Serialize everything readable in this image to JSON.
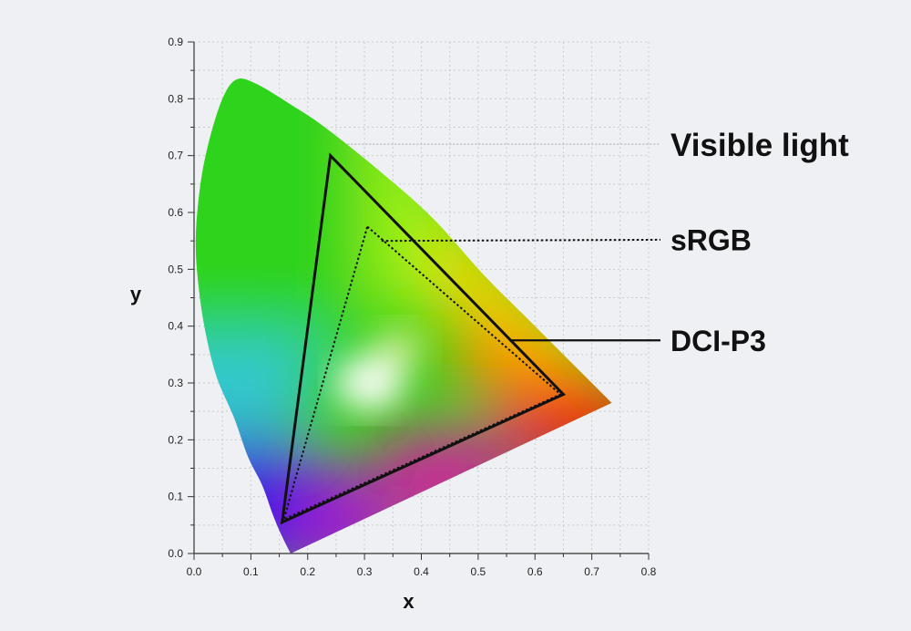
{
  "chart_data": {
    "type": "chromaticity-diagram",
    "title": "",
    "xlabel": "x",
    "ylabel": "y",
    "xlim": [
      0.0,
      0.8
    ],
    "ylim": [
      0.0,
      0.9
    ],
    "x_ticks": [
      "0.0",
      "0.1",
      "0.2",
      "0.3",
      "0.4",
      "0.5",
      "0.6",
      "0.7",
      "0.8"
    ],
    "y_ticks": [
      "0.0",
      "0.1",
      "0.2",
      "0.3",
      "0.4",
      "0.5",
      "0.6",
      "0.7",
      "0.8",
      "0.9"
    ],
    "grid": true,
    "spectral_locus": [
      [
        0.17,
        0.0
      ],
      [
        0.155,
        0.03
      ],
      [
        0.14,
        0.065
      ],
      [
        0.12,
        0.12
      ],
      [
        0.095,
        0.17
      ],
      [
        0.07,
        0.24
      ],
      [
        0.04,
        0.31
      ],
      [
        0.02,
        0.39
      ],
      [
        0.008,
        0.47
      ],
      [
        0.003,
        0.55
      ],
      [
        0.01,
        0.64
      ],
      [
        0.025,
        0.72
      ],
      [
        0.05,
        0.8
      ],
      [
        0.075,
        0.834
      ],
      [
        0.11,
        0.826
      ],
      [
        0.17,
        0.79
      ],
      [
        0.23,
        0.75
      ],
      [
        0.33,
        0.67
      ],
      [
        0.42,
        0.59
      ],
      [
        0.51,
        0.49
      ],
      [
        0.58,
        0.42
      ],
      [
        0.64,
        0.36
      ],
      [
        0.7,
        0.3
      ],
      [
        0.735,
        0.265
      ]
    ],
    "series": [
      {
        "name": "Visible light",
        "style": "filled-gamut"
      },
      {
        "name": "DCI-P3",
        "style": "solid",
        "points": [
          [
            0.24,
            0.7
          ],
          [
            0.65,
            0.28
          ],
          [
            0.155,
            0.055
          ]
        ]
      },
      {
        "name": "sRGB",
        "style": "dotted",
        "points": [
          [
            0.305,
            0.575
          ],
          [
            0.645,
            0.28
          ],
          [
            0.158,
            0.06
          ]
        ]
      }
    ],
    "callouts": [
      {
        "label": "Visible light",
        "anchor": [
          0.27,
          0.72
        ],
        "label_y": 0.72
      },
      {
        "label": "sRGB",
        "anchor": [
          0.33,
          0.55
        ],
        "label_y": 0.552
      },
      {
        "label": "DCI-P3",
        "anchor": [
          0.555,
          0.375
        ],
        "label_y": 0.375
      }
    ],
    "colors": {
      "background": "#eef0f3",
      "green": "#3ed11c",
      "cyan": "#32c8d2",
      "blue": "#3a1ee6",
      "purple": "#9a1ed0",
      "magenta": "#d21ea0",
      "red": "#e8120a",
      "orange": "#ff8a00",
      "yellow": "#ffd500",
      "white_point": "#ffffff"
    }
  }
}
